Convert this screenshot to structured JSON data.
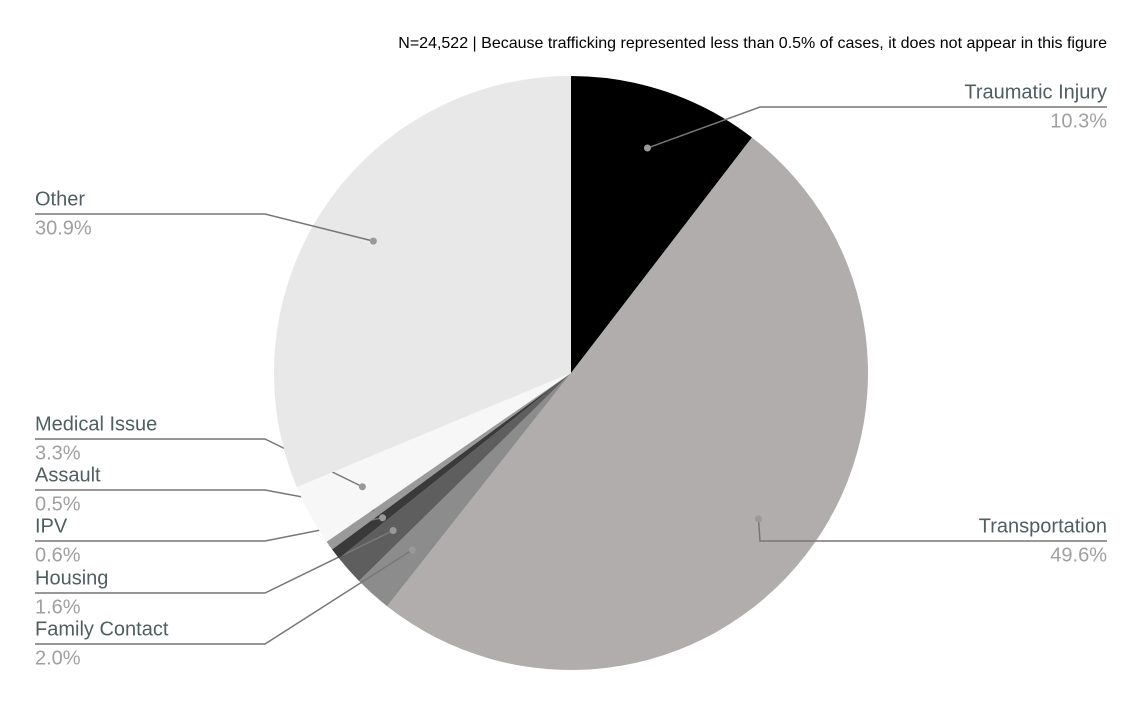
{
  "chart_data": {
    "type": "pie",
    "subtitle": "N=24,522 |  Because trafficking represented less than 0.5% of cases, it does not appear in this figure",
    "categories": [
      "Traumatic Injury",
      "Transportation",
      "Family Contact",
      "Housing",
      "IPV",
      "Assault",
      "Medical Issue",
      "Other"
    ],
    "values": [
      10.3,
      49.6,
      2.0,
      1.6,
      0.6,
      0.5,
      3.3,
      30.9
    ],
    "value_labels": [
      "10.3%",
      "49.6%",
      "2.0%",
      "1.6%",
      "0.6%",
      "0.5%",
      "3.3%",
      "30.9%"
    ],
    "colors": [
      "#000000",
      "#b0adac",
      "#8c8c8c",
      "#5e5e5e",
      "#3a3a3a",
      "#9a9a9a",
      "#f7f7f7",
      "#e8e8e8"
    ]
  }
}
